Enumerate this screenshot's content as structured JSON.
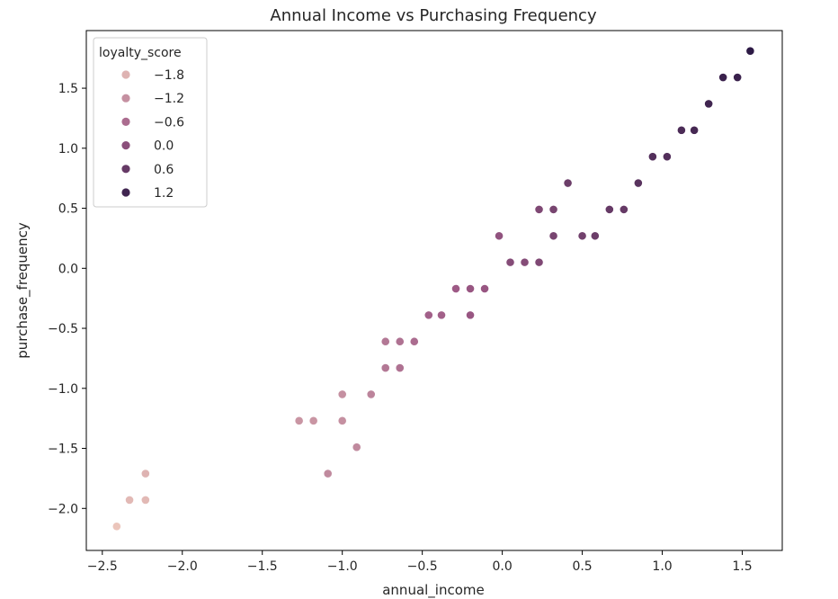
{
  "chart_data": {
    "type": "scatter",
    "title": "Annual Income vs Purchasing Frequency",
    "xlabel": "annual_income",
    "ylabel": "purchase_frequency",
    "xlim": [
      -2.6,
      1.75
    ],
    "ylim": [
      -2.35,
      1.98
    ],
    "xticks": [
      -2.5,
      -2.0,
      -1.5,
      -1.0,
      -0.5,
      0.0,
      0.5,
      1.0,
      1.5
    ],
    "xtick_labels": [
      "−2.5",
      "−2.0",
      "−1.5",
      "−1.0",
      "−0.5",
      "0.0",
      "0.5",
      "1.0",
      "1.5"
    ],
    "yticks": [
      -2.0,
      -1.5,
      -1.0,
      -0.5,
      0.0,
      0.5,
      1.0,
      1.5
    ],
    "ytick_labels": [
      "−2.0",
      "−1.5",
      "−1.0",
      "−0.5",
      "0.0",
      "0.5",
      "1.0",
      "1.5"
    ],
    "grid": false,
    "legend": {
      "title": "loyalty_score",
      "placement": "upper-left",
      "entries": [
        {
          "label": "−1.8",
          "value": -1.8
        },
        {
          "label": "−1.2",
          "value": -1.2
        },
        {
          "label": "−0.6",
          "value": -0.6
        },
        {
          "label": "0.0",
          "value": 0.0
        },
        {
          "label": "0.6",
          "value": 0.6
        },
        {
          "label": "1.2",
          "value": 1.2
        }
      ]
    },
    "hue": "loyalty_score",
    "hue_range": [
      -2.1,
      1.5
    ],
    "colors": {
      "low": "#ebc5bb",
      "mid": "#9e5a86",
      "high": "#2d1a45"
    },
    "points": [
      {
        "x": -2.41,
        "y": -2.15,
        "loyalty_score": -2.1
      },
      {
        "x": -2.33,
        "y": -1.93,
        "loyalty_score": -1.9
      },
      {
        "x": -2.23,
        "y": -1.93,
        "loyalty_score": -1.9
      },
      {
        "x": -2.23,
        "y": -1.71,
        "loyalty_score": -1.8
      },
      {
        "x": -1.27,
        "y": -1.27,
        "loyalty_score": -1.3
      },
      {
        "x": -1.18,
        "y": -1.27,
        "loyalty_score": -1.3
      },
      {
        "x": -1.09,
        "y": -1.71,
        "loyalty_score": -1.1
      },
      {
        "x": -1.0,
        "y": -1.05,
        "loyalty_score": -1.2
      },
      {
        "x": -1.0,
        "y": -1.27,
        "loyalty_score": -1.2
      },
      {
        "x": -0.91,
        "y": -1.49,
        "loyalty_score": -1.1
      },
      {
        "x": -0.82,
        "y": -1.05,
        "loyalty_score": -1.0
      },
      {
        "x": -0.73,
        "y": -0.61,
        "loyalty_score": -0.8
      },
      {
        "x": -0.73,
        "y": -0.83,
        "loyalty_score": -0.8
      },
      {
        "x": -0.64,
        "y": -0.61,
        "loyalty_score": -0.7
      },
      {
        "x": -0.64,
        "y": -0.83,
        "loyalty_score": -0.7
      },
      {
        "x": -0.55,
        "y": -0.61,
        "loyalty_score": -0.6
      },
      {
        "x": -0.46,
        "y": -0.39,
        "loyalty_score": -0.4
      },
      {
        "x": -0.38,
        "y": -0.39,
        "loyalty_score": -0.4
      },
      {
        "x": -0.29,
        "y": -0.17,
        "loyalty_score": -0.3
      },
      {
        "x": -0.2,
        "y": -0.17,
        "loyalty_score": -0.2
      },
      {
        "x": -0.2,
        "y": -0.39,
        "loyalty_score": -0.2
      },
      {
        "x": -0.11,
        "y": -0.17,
        "loyalty_score": -0.2
      },
      {
        "x": -0.02,
        "y": 0.27,
        "loyalty_score": -0.1
      },
      {
        "x": 0.05,
        "y": 0.05,
        "loyalty_score": 0.1
      },
      {
        "x": 0.14,
        "y": 0.05,
        "loyalty_score": 0.1
      },
      {
        "x": 0.23,
        "y": 0.05,
        "loyalty_score": 0.2
      },
      {
        "x": 0.23,
        "y": 0.49,
        "loyalty_score": 0.2
      },
      {
        "x": 0.32,
        "y": 0.49,
        "loyalty_score": 0.3
      },
      {
        "x": 0.32,
        "y": 0.27,
        "loyalty_score": 0.3
      },
      {
        "x": 0.41,
        "y": 0.71,
        "loyalty_score": 0.5
      },
      {
        "x": 0.5,
        "y": 0.27,
        "loyalty_score": 0.4
      },
      {
        "x": 0.58,
        "y": 0.27,
        "loyalty_score": 0.5
      },
      {
        "x": 0.67,
        "y": 0.49,
        "loyalty_score": 0.6
      },
      {
        "x": 0.76,
        "y": 0.49,
        "loyalty_score": 0.6
      },
      {
        "x": 0.85,
        "y": 0.71,
        "loyalty_score": 0.8
      },
      {
        "x": 0.94,
        "y": 0.93,
        "loyalty_score": 0.9
      },
      {
        "x": 1.03,
        "y": 0.93,
        "loyalty_score": 0.9
      },
      {
        "x": 1.12,
        "y": 1.15,
        "loyalty_score": 1.0
      },
      {
        "x": 1.2,
        "y": 1.15,
        "loyalty_score": 1.1
      },
      {
        "x": 1.29,
        "y": 1.37,
        "loyalty_score": 1.2
      },
      {
        "x": 1.38,
        "y": 1.59,
        "loyalty_score": 1.3
      },
      {
        "x": 1.47,
        "y": 1.59,
        "loyalty_score": 1.3
      },
      {
        "x": 1.55,
        "y": 1.81,
        "loyalty_score": 1.5
      }
    ]
  }
}
